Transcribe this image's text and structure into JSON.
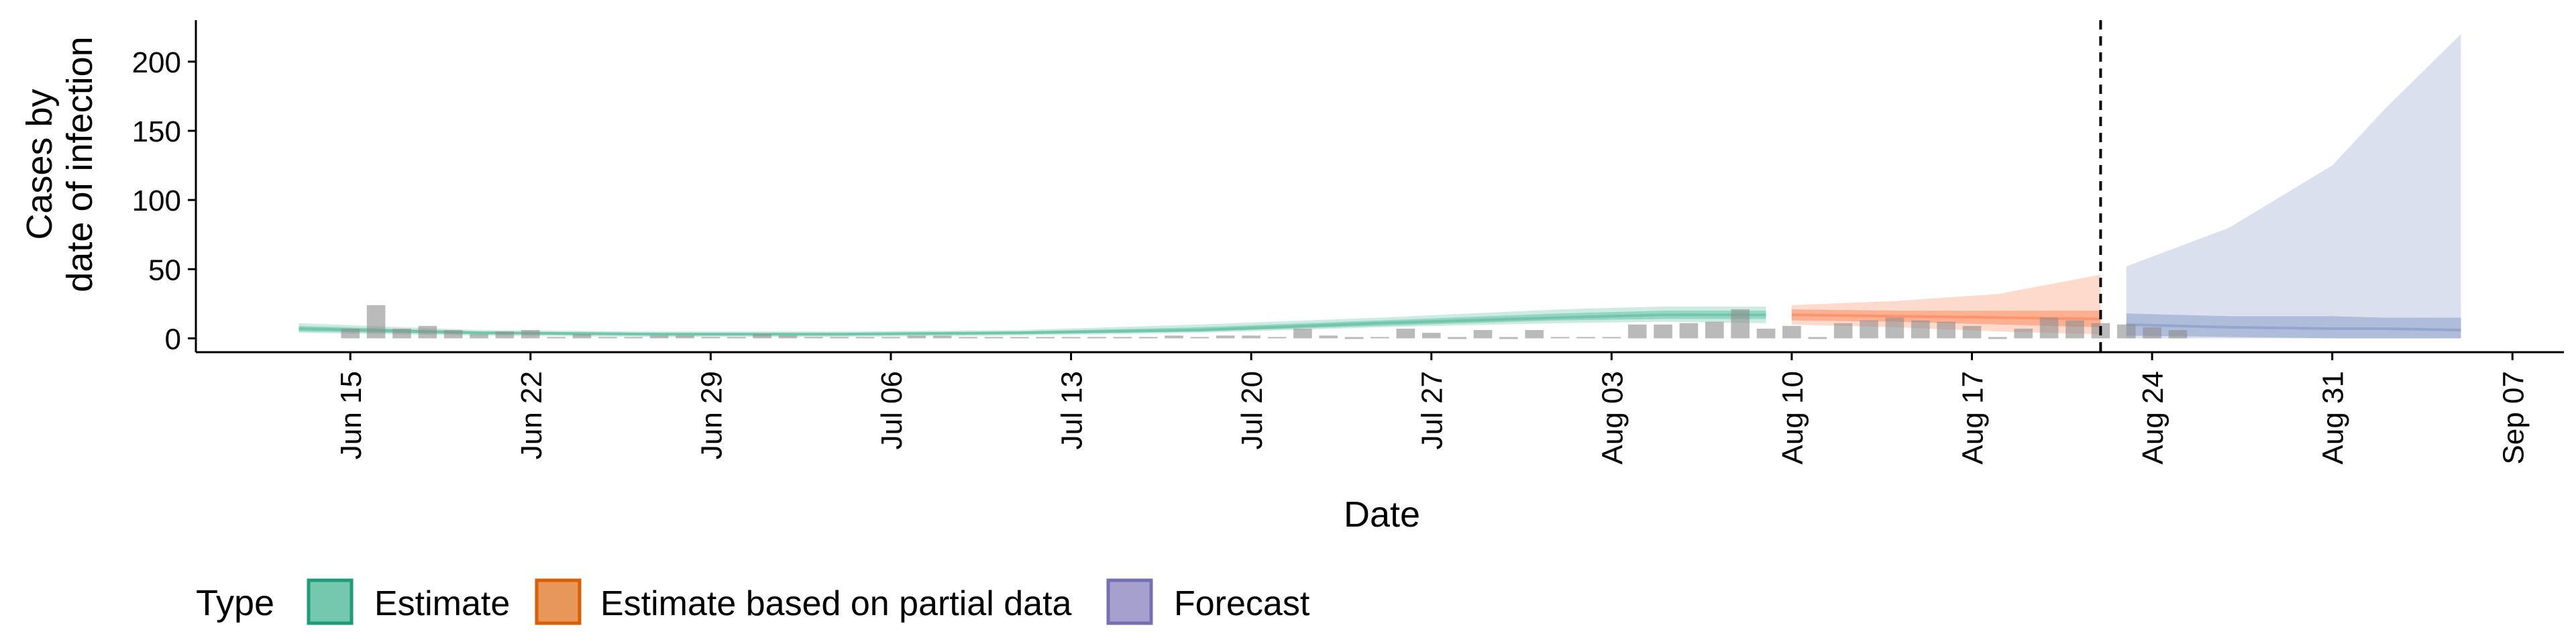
{
  "chart_data": {
    "type": "bar",
    "xlabel": "Date",
    "ylabel_lines": [
      "Cases by",
      "date of infection"
    ],
    "x_domain": [
      "2020-06-09",
      "2020-09-09"
    ],
    "ylim": [
      -10,
      230
    ],
    "yticks": [
      0,
      50,
      100,
      150,
      200
    ],
    "xticks": [
      {
        "date": "2020-06-15",
        "label": "Jun 15"
      },
      {
        "date": "2020-06-22",
        "label": "Jun 22"
      },
      {
        "date": "2020-06-29",
        "label": "Jun 29"
      },
      {
        "date": "2020-07-06",
        "label": "Jul 06"
      },
      {
        "date": "2020-07-13",
        "label": "Jul 13"
      },
      {
        "date": "2020-07-20",
        "label": "Jul 20"
      },
      {
        "date": "2020-07-27",
        "label": "Jul 27"
      },
      {
        "date": "2020-08-03",
        "label": "Aug 03"
      },
      {
        "date": "2020-08-10",
        "label": "Aug 10"
      },
      {
        "date": "2020-08-17",
        "label": "Aug 17"
      },
      {
        "date": "2020-08-24",
        "label": "Aug 24"
      },
      {
        "date": "2020-08-31",
        "label": "Aug 31"
      },
      {
        "date": "2020-09-07",
        "label": "Sep 07"
      }
    ],
    "forecast_start_date": "2020-08-22",
    "observed_cases": {
      "start_date": "2020-06-15",
      "values": [
        7,
        24,
        7,
        9,
        6,
        3,
        5,
        6,
        1,
        3,
        1,
        1,
        2,
        2,
        1,
        1,
        3,
        2,
        1,
        1,
        1,
        1,
        2,
        2,
        1,
        1,
        1,
        1,
        1,
        1,
        1,
        1,
        2,
        1,
        2,
        2,
        1,
        7,
        2,
        0,
        1,
        7,
        4,
        0,
        6,
        0,
        6,
        1,
        1,
        1,
        10,
        10,
        11,
        12,
        21,
        7,
        9,
        0,
        11,
        13,
        15,
        13,
        12,
        9,
        0,
        7,
        15,
        13,
        11,
        10,
        8,
        6
      ]
    },
    "series": [
      {
        "name": "Estimate",
        "color": "#1b9e77",
        "fill": "#66c2a5",
        "x": [
          "2020-06-13",
          "2020-06-20",
          "2020-06-27",
          "2020-07-04",
          "2020-07-11",
          "2020-07-18",
          "2020-07-25",
          "2020-08-01",
          "2020-08-05",
          "2020-08-09"
        ],
        "median": [
          7,
          4,
          3,
          3,
          4,
          6,
          11,
          15,
          17,
          17
        ],
        "lower50": [
          5,
          3,
          2,
          2,
          3,
          5,
          9,
          13,
          14,
          14
        ],
        "upper50": [
          9,
          5,
          4,
          4,
          5,
          8,
          13,
          18,
          20,
          20
        ],
        "lower90": [
          4,
          2,
          1,
          1,
          2,
          4,
          8,
          11,
          12,
          11
        ],
        "upper90": [
          11,
          6,
          5,
          5,
          6,
          10,
          15,
          21,
          23,
          23
        ]
      },
      {
        "name": "Estimate based on partial data",
        "color": "#d95f02",
        "fill": "#fc8d62",
        "x": [
          "2020-08-10",
          "2020-08-14",
          "2020-08-18",
          "2020-08-22"
        ],
        "median": [
          17,
          16,
          15,
          14
        ],
        "lower50": [
          13,
          12,
          10,
          8
        ],
        "upper50": [
          21,
          20,
          20,
          20
        ],
        "lower90": [
          10,
          8,
          5,
          3
        ],
        "upper90": [
          24,
          27,
          32,
          46
        ]
      },
      {
        "name": "Forecast",
        "color": "#7570b3",
        "fill": "#8da0cb",
        "x": [
          "2020-08-23",
          "2020-08-27",
          "2020-08-31",
          "2020-09-02",
          "2020-09-05"
        ],
        "median": [
          10,
          8,
          7,
          7,
          6
        ],
        "lower50": [
          2,
          1,
          0,
          0,
          0
        ],
        "upper50": [
          18,
          16,
          16,
          15,
          15
        ],
        "lower90": [
          0,
          0,
          0,
          0,
          0
        ],
        "upper90": [
          52,
          80,
          125,
          165,
          220
        ]
      }
    ],
    "legend": {
      "title": "Type",
      "placement": "bottom",
      "items": [
        "Estimate",
        "Estimate based on partial data",
        "Forecast"
      ]
    },
    "grid": false
  }
}
